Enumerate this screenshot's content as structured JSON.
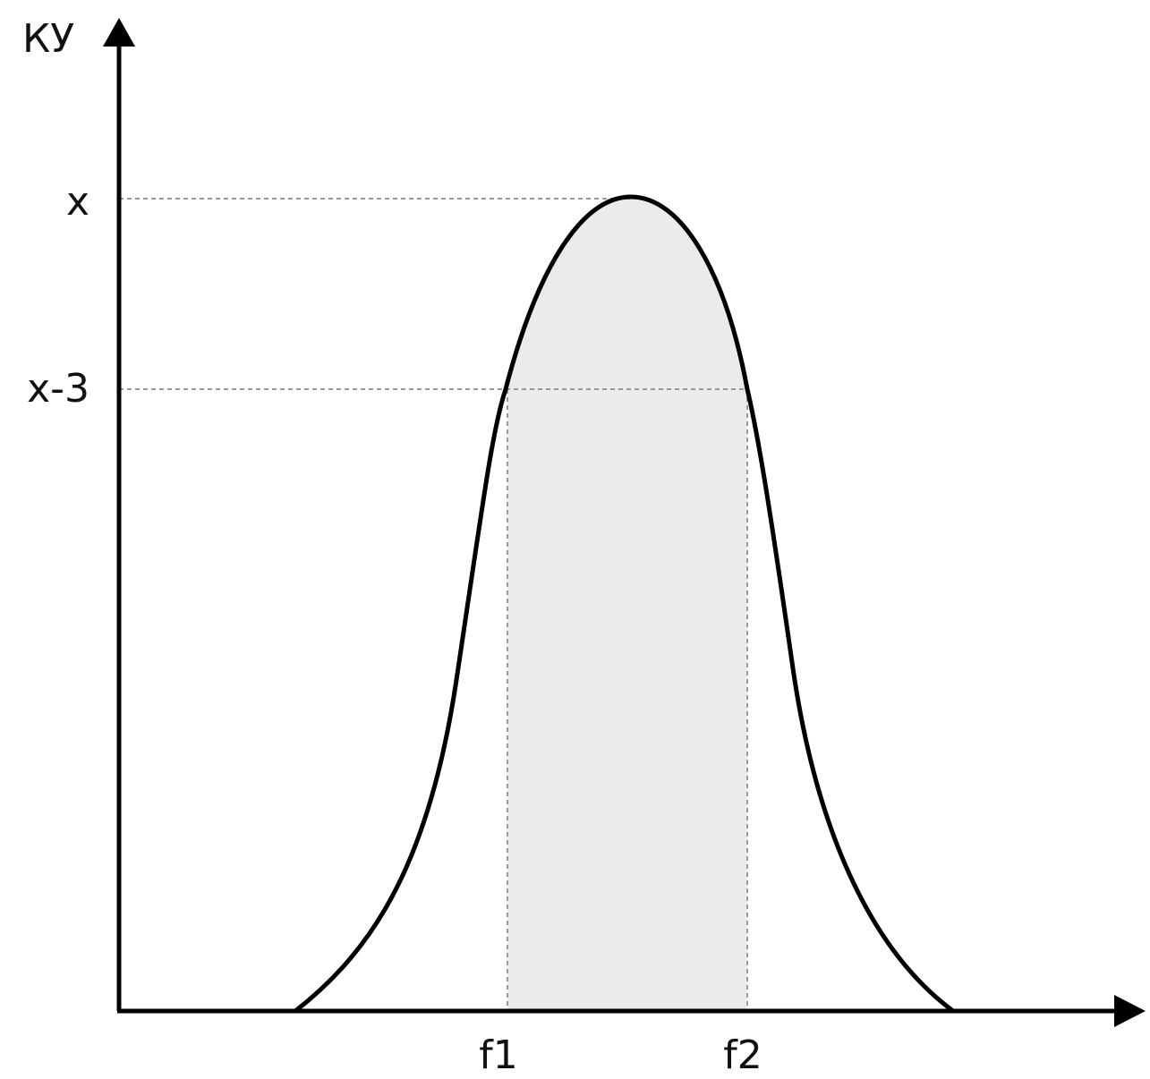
{
  "axis": {
    "y_label": "КУ"
  },
  "y_levels": [
    "x",
    "x-3"
  ],
  "x_markers": [
    "f1",
    "f2"
  ]
}
